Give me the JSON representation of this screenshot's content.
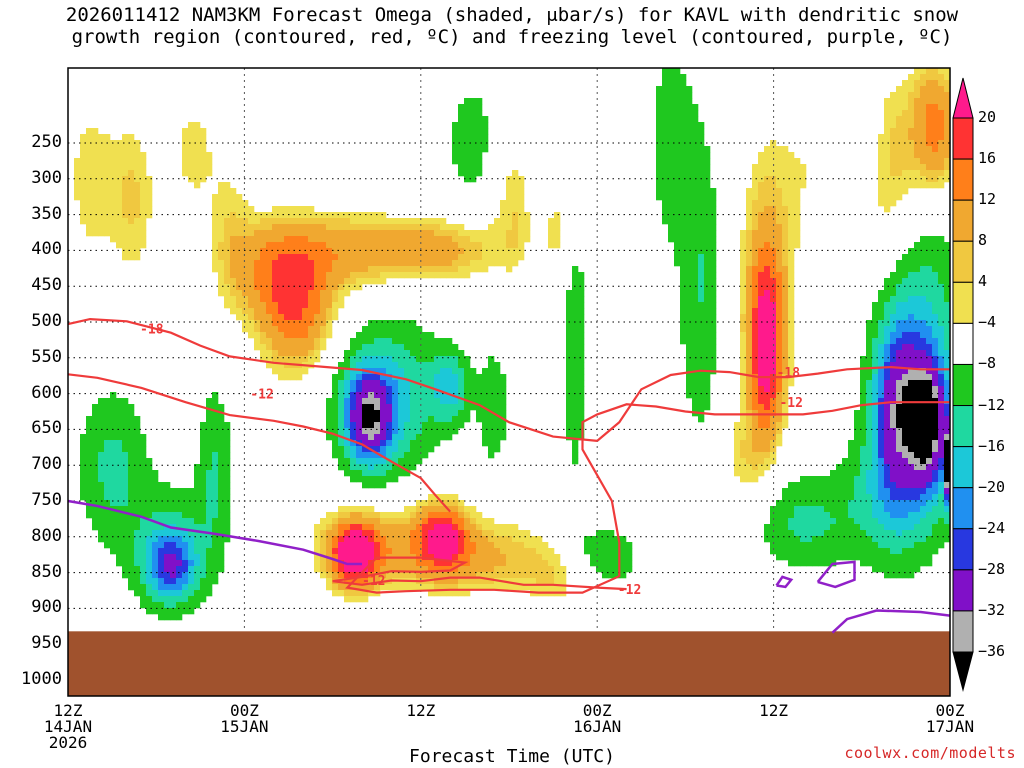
{
  "title_line1": "2026011412 NAM3KM Forecast Omega (shaded, μbar/s) for KAVL with dendritic snow",
  "title_line2": "growth region (contoured, red, ºC) and freezing level (contoured, purple, ºC)",
  "credit": "coolwx.com/modelts",
  "chart_data": {
    "type": "heatmap",
    "title": "2026011412 NAM3KM Forecast Omega (shaded, μbar/s) for KAVL with dendritic snow growth region (contoured, red, ºC) and freezing level (contoured, purple, ºC)",
    "xlabel": "Forecast Time (UTC)",
    "ylabel": "",
    "x_ticks": [
      {
        "hour": 0,
        "label": [
          "12Z",
          "14JAN",
          "2026"
        ]
      },
      {
        "hour": 12,
        "label": [
          "00Z",
          "15JAN"
        ]
      },
      {
        "hour": 24,
        "label": [
          "12Z"
        ]
      },
      {
        "hour": 36,
        "label": [
          "00Z",
          "16JAN"
        ]
      },
      {
        "hour": 48,
        "label": [
          "12Z"
        ]
      },
      {
        "hour": 60,
        "label": [
          "00Z",
          "17JAN"
        ]
      }
    ],
    "xlim_hours": [
      0,
      60
    ],
    "y_ticks": [
      250,
      300,
      350,
      400,
      450,
      500,
      550,
      600,
      650,
      700,
      750,
      800,
      850,
      900,
      950,
      1000
    ],
    "ylim_mb": [
      200,
      1050
    ],
    "ground_level_mb": 932,
    "grid": true,
    "colorbar": {
      "labels": [
        "20",
        "16",
        "12",
        "8",
        "4",
        "−4",
        "−8",
        "−12",
        "−16",
        "−20",
        "−24",
        "−28",
        "−32",
        "−36"
      ],
      "colors": [
        "#ff1a8c",
        "#ff3333",
        "#ff7f1a",
        "#f0a830",
        "#f0c840",
        "#f0e050",
        "#ffffff",
        "#1fc81f",
        "#1fd8a0",
        "#1cc8d8",
        "#2090f0",
        "#2838e0",
        "#8010c8",
        "#b0b0b0",
        "#000000"
      ]
    },
    "contour_labels": {
      "dgz": [
        "-18",
        "-12",
        "-18",
        "-12",
        "-12",
        "-12"
      ]
    },
    "omega_blobs": [
      {
        "h": 1.5,
        "p": 300,
        "v": 5,
        "rh": 2.0,
        "rp": 150
      },
      {
        "h": 4.5,
        "p": 330,
        "v": 6,
        "rh": 1.6,
        "rp": 120
      },
      {
        "h": 8.5,
        "p": 260,
        "v": 5,
        "rh": 1.6,
        "rp": 90
      },
      {
        "h": 11,
        "p": 370,
        "v": 4.5,
        "rh": 1.5,
        "rp": 120
      },
      {
        "h": 15.5,
        "p": 480,
        "v": 15,
        "rh": 2.6,
        "rp": 90
      },
      {
        "h": 13.5,
        "p": 420,
        "v": 8,
        "rh": 2.8,
        "rp": 70
      },
      {
        "h": 19,
        "p": 400,
        "v": 9,
        "rh": 4.0,
        "rp": 55
      },
      {
        "h": 25,
        "p": 400,
        "v": 10,
        "rh": 4.0,
        "rp": 45
      },
      {
        "h": 31,
        "p": 330,
        "v": 6,
        "rh": 2.5,
        "rp": 110
      },
      {
        "h": 33,
        "p": 380,
        "v": 5,
        "rh": 2.0,
        "rp": 70
      },
      {
        "h": 19.5,
        "p": 825,
        "v": 22,
        "rh": 1.6,
        "rp": 45
      },
      {
        "h": 25.5,
        "p": 800,
        "v": 17,
        "rh": 1.6,
        "rp": 45
      },
      {
        "h": 22,
        "p": 810,
        "v": 9,
        "rh": 5.5,
        "rp": 60
      },
      {
        "h": 29,
        "p": 830,
        "v": 7,
        "rh": 5.0,
        "rp": 55
      },
      {
        "h": 34,
        "p": 860,
        "v": 5,
        "rh": 2.5,
        "rp": 40
      },
      {
        "h": 47.5,
        "p": 540,
        "v": 17,
        "rh": 1.0,
        "rp": 110
      },
      {
        "h": 47.5,
        "p": 470,
        "v": 11,
        "rh": 1.8,
        "rp": 190
      },
      {
        "h": 46,
        "p": 700,
        "v": 5,
        "rh": 1.6,
        "rp": 80
      },
      {
        "h": 52,
        "p": 270,
        "v": 5,
        "rh": 3.5,
        "rp": 150
      },
      {
        "h": 56,
        "p": 290,
        "v": 7,
        "rh": 2.0,
        "rp": 140
      },
      {
        "h": 59,
        "p": 230,
        "v": 14,
        "rh": 1.6,
        "rp": 90
      },
      {
        "h": 20.5,
        "p": 635,
        "v": -23,
        "rh": 1.4,
        "rp": 55
      },
      {
        "h": 20.5,
        "p": 620,
        "v": -12,
        "rh": 2.6,
        "rp": 95
      },
      {
        "h": 26,
        "p": 590,
        "v": -12,
        "rh": 1.2,
        "rp": 45
      },
      {
        "h": 23,
        "p": 600,
        "v": -8,
        "rh": 3.5,
        "rp": 110
      },
      {
        "h": 7,
        "p": 840,
        "v": -18,
        "rh": 1.6,
        "rp": 45
      },
      {
        "h": 7,
        "p": 820,
        "v": -9,
        "rh": 3.0,
        "rp": 90
      },
      {
        "h": 3,
        "p": 700,
        "v": -9,
        "rh": 2.5,
        "rp": 110
      },
      {
        "h": 10,
        "p": 700,
        "v": -8,
        "rh": 1.2,
        "rp": 120
      },
      {
        "h": 29,
        "p": 620,
        "v": -6,
        "rh": 1.2,
        "rp": 100
      },
      {
        "h": 27.5,
        "p": 250,
        "v": -7,
        "rh": 1.8,
        "rp": 90
      },
      {
        "h": 32,
        "p": 340,
        "v": -7,
        "rh": 1.0,
        "rp": 150
      },
      {
        "h": 34.5,
        "p": 500,
        "v": -7,
        "rh": 1.0,
        "rp": 260
      },
      {
        "h": 36.5,
        "p": 830,
        "v": -8,
        "rh": 2.5,
        "rp": 50
      },
      {
        "h": 41,
        "p": 250,
        "v": -7,
        "rh": 1.5,
        "rp": 140
      },
      {
        "h": 43,
        "p": 450,
        "v": -8,
        "rh": 1.5,
        "rp": 230
      },
      {
        "h": 50,
        "p": 780,
        "v": -9,
        "rh": 3.5,
        "rp": 70
      },
      {
        "h": 56.5,
        "p": 620,
        "v": -22,
        "rh": 1.6,
        "rp": 110
      },
      {
        "h": 58.5,
        "p": 640,
        "v": -30,
        "rh": 1.2,
        "rp": 80
      },
      {
        "h": 58,
        "p": 560,
        "v": -14,
        "rh": 3.0,
        "rp": 200
      },
      {
        "h": 56,
        "p": 740,
        "v": -10,
        "rh": 3.0,
        "rp": 100
      },
      {
        "h": 53.5,
        "p": 250,
        "v": -8,
        "rh": 1.8,
        "rp": 100
      },
      {
        "h": 59.9,
        "p": 700,
        "v": -36,
        "rh": 0.3,
        "rp": 50
      }
    ]
  }
}
